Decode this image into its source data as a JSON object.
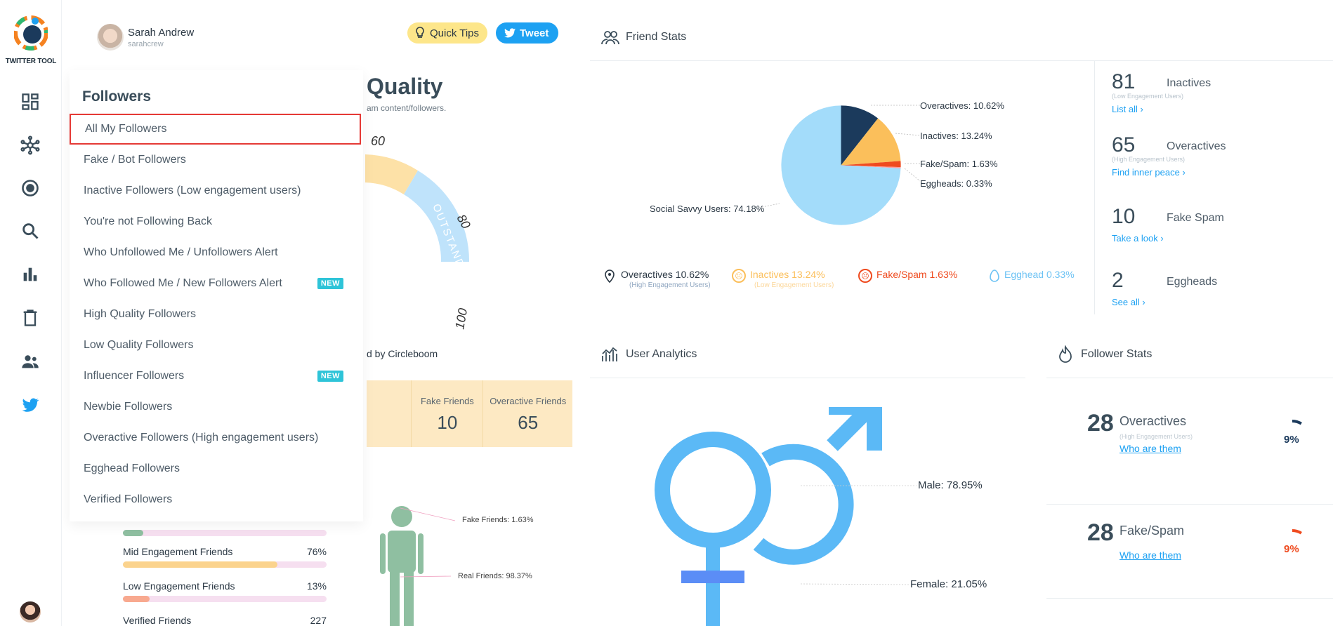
{
  "app": {
    "logo_text": "TWITTER TOOL"
  },
  "rail": {
    "items": [
      "dashboard-icon",
      "network-icon",
      "target-icon",
      "search-icon",
      "bar-chart-icon",
      "trash-icon",
      "people-icon",
      "twitter-icon"
    ]
  },
  "user": {
    "name": "Sarah Andrew",
    "handle": "sarahcrew"
  },
  "header": {
    "tips_label": "Quick Tips",
    "tweet_label": "Tweet"
  },
  "quality": {
    "title": "Quality",
    "subtitle": "am content/followers.",
    "gauge_ticks": [
      "60",
      "80",
      "100"
    ],
    "gauge_band": "OUTSTANDING",
    "powered": "d by Circleboom",
    "fake_friends_label": "Fake Friends",
    "fake_friends_value": "10",
    "overactive_friends_label": "Overactive Friends",
    "overactive_friends_value": "65",
    "person_fake": "Fake Friends: 1.63%",
    "person_real": "Real Friends: 98.37%"
  },
  "dropdown": {
    "title": "Followers",
    "items": [
      {
        "label": "All My Followers",
        "new": false
      },
      {
        "label": "Fake / Bot Followers",
        "new": false
      },
      {
        "label": "Inactive Followers (Low engagement users)",
        "new": false
      },
      {
        "label": "You're not Following Back",
        "new": false
      },
      {
        "label": "Who Unfollowed Me / Unfollowers Alert",
        "new": false
      },
      {
        "label": "Who Followed Me / New Followers Alert",
        "new": true
      },
      {
        "label": "High Quality Followers",
        "new": false
      },
      {
        "label": "Low Quality Followers",
        "new": false
      },
      {
        "label": "Influencer Followers",
        "new": true
      },
      {
        "label": "Newbie Followers",
        "new": false
      },
      {
        "label": "Overactive Followers (High engagement users)",
        "new": false
      },
      {
        "label": "Egghead Followers",
        "new": false
      },
      {
        "label": "Verified Followers",
        "new": false
      }
    ],
    "new_badge": "NEW"
  },
  "engagement": {
    "rows": [
      {
        "label": "Mid Engagement Friends",
        "value": "76%",
        "fill": 0.76,
        "color": "#fbd38d"
      },
      {
        "label": "Low Engagement Friends",
        "value": "13%",
        "fill": 0.13,
        "color": "#f8a98f"
      },
      {
        "label": "Verified Friends",
        "value": "227"
      }
    ],
    "top_fill": 0.1
  },
  "friend_stats": {
    "title": "Friend Stats",
    "pie_labels": {
      "overactives": "Overactives: 10.62%",
      "inactives": "Inactives: 13.24%",
      "fake": "Fake/Spam: 1.63%",
      "eggheads": "Eggheads: 0.33%",
      "savvy": "Social Savvy Users: 74.18%"
    },
    "legend": {
      "overactives": "Overactives 10.62%",
      "overactives_sub": "(High Engagement Users)",
      "inactives": "Inactives 13.24%",
      "inactives_sub": "(Low Engagement Users)",
      "fake": "Fake/Spam 1.63%",
      "egghead": "Egghead 0.33%"
    },
    "stats": [
      {
        "num": "81",
        "name": "Inactives",
        "sub": "(Low Engagement Users)",
        "link": "List all ›"
      },
      {
        "num": "65",
        "name": "Overactives",
        "sub": "(High Engagement Users)",
        "link": "Find inner peace ›"
      },
      {
        "num": "10",
        "name": "Fake Spam",
        "sub": "",
        "link": "Take a look ›"
      },
      {
        "num": "2",
        "name": "Eggheads",
        "sub": "",
        "link": "See all ›"
      }
    ]
  },
  "chart_data": {
    "type": "pie",
    "title": "Friend Stats",
    "categories": [
      "Overactives",
      "Inactives",
      "Fake/Spam",
      "Eggheads",
      "Social Savvy Users"
    ],
    "values": [
      10.62,
      13.24,
      1.63,
      0.33,
      74.18
    ],
    "colors": [
      "#1b3a5c",
      "#fbbf5b",
      "#ef4b1f",
      "#ff9a9a",
      "#a3dcfa"
    ]
  },
  "user_analytics": {
    "title": "User Analytics",
    "male": "Male: 78.95%",
    "female": "Female: 21.05%"
  },
  "follower_stats": {
    "title": "Follower Stats",
    "items": [
      {
        "num": "28",
        "name": "Overactives",
        "sub": "(High Engagement Users)",
        "link": "Who are them",
        "pct": "9%",
        "color": "#1b3a5c"
      },
      {
        "num": "28",
        "name": "Fake/Spam",
        "sub": "",
        "link": "Who are them",
        "pct": "9%",
        "color": "#ef4b1f"
      }
    ]
  },
  "colors": {
    "accent": "#1da1f2",
    "highlight_border": "#e53935",
    "new_badge": "#2ec4d8"
  }
}
